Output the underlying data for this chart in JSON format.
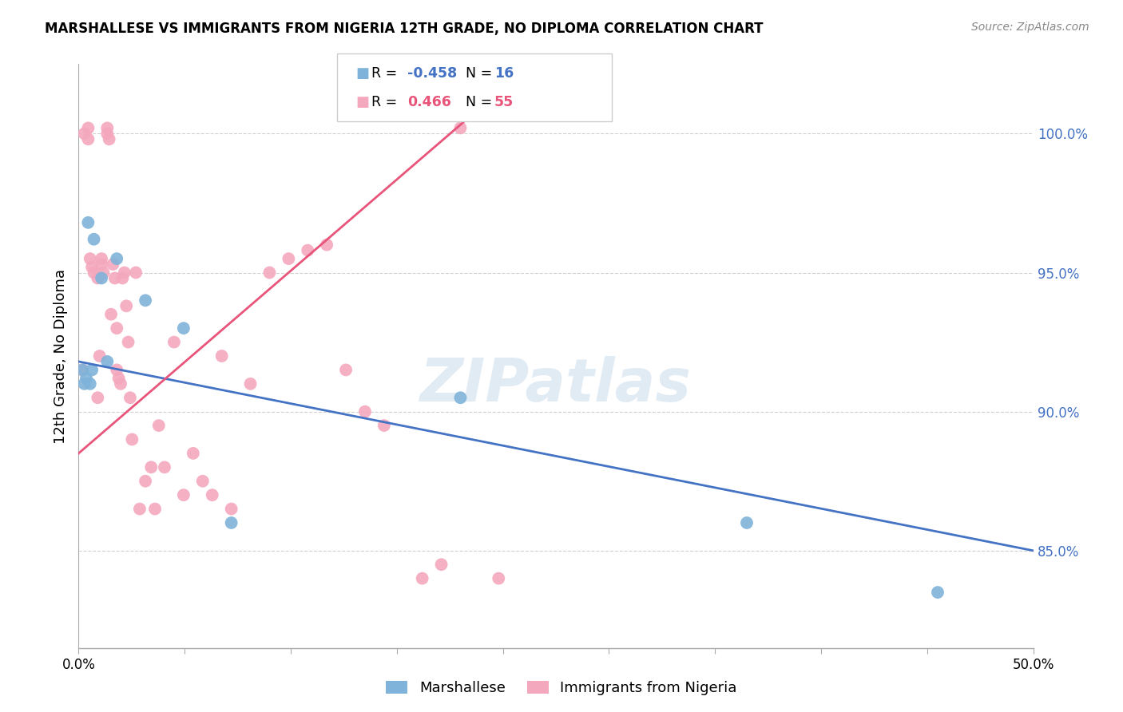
{
  "title": "MARSHALLESE VS IMMIGRANTS FROM NIGERIA 12TH GRADE, NO DIPLOMA CORRELATION CHART",
  "source": "Source: ZipAtlas.com",
  "ylabel": "12th Grade, No Diploma",
  "yticks": [
    100.0,
    95.0,
    90.0,
    85.0
  ],
  "xmin": 0.0,
  "xmax": 50.0,
  "ymin": 81.5,
  "ymax": 102.5,
  "blue_R": "-0.458",
  "blue_N": "16",
  "pink_R": "0.466",
  "pink_N": "55",
  "blue_label": "Marshallese",
  "pink_label": "Immigrants from Nigeria",
  "blue_color": "#7fb3d9",
  "pink_color": "#f4a8be",
  "blue_line_color": "#4472c4",
  "pink_line_color": "#e8547a",
  "watermark": "ZIPatlas",
  "blue_line_x0": 0.0,
  "blue_line_y0": 91.8,
  "blue_line_x1": 50.0,
  "blue_line_y1": 85.0,
  "pink_line_x0": 0.0,
  "pink_line_y0": 88.5,
  "pink_line_x1": 22.0,
  "pink_line_y1": 101.5,
  "blue_x": [
    0.2,
    0.3,
    0.4,
    0.5,
    0.6,
    0.7,
    0.8,
    1.2,
    1.5,
    2.0,
    3.5,
    5.5,
    8.0,
    20.0,
    35.0,
    45.0
  ],
  "blue_y": [
    91.5,
    91.0,
    91.2,
    96.8,
    91.0,
    91.5,
    96.2,
    94.8,
    91.8,
    95.5,
    94.0,
    93.0,
    86.0,
    90.5,
    86.0,
    83.5
  ],
  "pink_x": [
    0.2,
    0.3,
    0.5,
    0.5,
    0.6,
    0.7,
    0.8,
    1.0,
    1.0,
    1.1,
    1.2,
    1.2,
    1.3,
    1.5,
    1.5,
    1.6,
    1.7,
    1.8,
    1.9,
    2.0,
    2.0,
    2.1,
    2.2,
    2.3,
    2.4,
    2.5,
    2.6,
    2.7,
    2.8,
    3.0,
    3.2,
    3.5,
    3.8,
    4.0,
    4.2,
    4.5,
    5.0,
    5.5,
    6.0,
    6.5,
    7.0,
    7.5,
    8.0,
    9.0,
    10.0,
    11.0,
    12.0,
    13.0,
    14.0,
    15.0,
    16.0,
    18.0,
    19.0,
    20.0,
    22.0
  ],
  "pink_y": [
    91.5,
    100.0,
    100.2,
    99.8,
    95.5,
    95.2,
    95.0,
    94.8,
    90.5,
    92.0,
    95.3,
    95.5,
    95.0,
    100.2,
    100.0,
    99.8,
    93.5,
    95.3,
    94.8,
    91.5,
    93.0,
    91.2,
    91.0,
    94.8,
    95.0,
    93.8,
    92.5,
    90.5,
    89.0,
    95.0,
    86.5,
    87.5,
    88.0,
    86.5,
    89.5,
    88.0,
    92.5,
    87.0,
    88.5,
    87.5,
    87.0,
    92.0,
    86.5,
    91.0,
    95.0,
    95.5,
    95.8,
    96.0,
    91.5,
    90.0,
    89.5,
    84.0,
    84.5,
    100.2,
    84.0
  ]
}
